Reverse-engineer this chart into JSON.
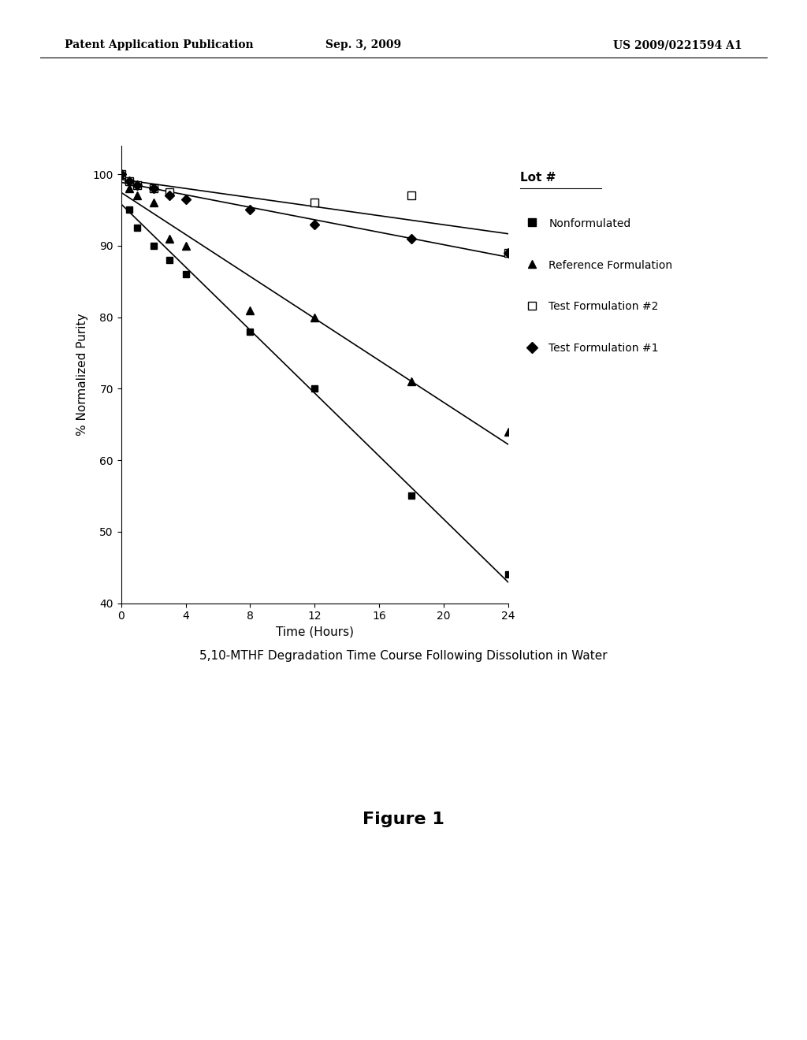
{
  "background_color": "#ffffff",
  "header_left": "Patent Application Publication",
  "header_center": "Sep. 3, 2009",
  "header_right": "US 2009/0221594 A1",
  "figure_label": "Figure 1",
  "chart_caption": "5,10-MTHF Degradation Time Course Following Dissolution in Water",
  "xlabel": "Time (Hours)",
  "ylabel": "% Normalized Purity",
  "xlim": [
    0,
    24
  ],
  "ylim": [
    40,
    104
  ],
  "xticks": [
    0,
    4,
    8,
    12,
    16,
    20,
    24
  ],
  "yticks": [
    40,
    50,
    60,
    70,
    80,
    90,
    100
  ],
  "legend_title": "Lot #",
  "series": [
    {
      "label": "Nonformulated",
      "marker": "s",
      "marker_fill": "black",
      "marker_size": 6,
      "color": "black",
      "x": [
        0,
        0.5,
        1,
        2,
        3,
        4,
        8,
        12,
        18,
        24
      ],
      "y": [
        100,
        95,
        92.5,
        90,
        88,
        86,
        78,
        70,
        55,
        44
      ]
    },
    {
      "label": "Reference Formulation",
      "marker": "^",
      "marker_fill": "black",
      "marker_size": 7,
      "color": "black",
      "x": [
        0,
        0.5,
        1,
        2,
        3,
        4,
        8,
        12,
        18,
        24
      ],
      "y": [
        100,
        98,
        97,
        96,
        91,
        90,
        81,
        80,
        71,
        64
      ]
    },
    {
      "label": "Test Formulation #2",
      "marker": "s",
      "marker_fill": "white",
      "marker_size": 7,
      "color": "black",
      "x": [
        0,
        0.5,
        1,
        2,
        3,
        12,
        18,
        24
      ],
      "y": [
        100,
        99,
        98.5,
        98,
        97.5,
        96,
        97,
        89
      ]
    },
    {
      "label": "Test Formulation #1",
      "marker": "D",
      "marker_fill": "black",
      "marker_size": 6,
      "color": "black",
      "x": [
        0,
        0.5,
        1,
        2,
        3,
        4,
        8,
        12,
        18,
        24
      ],
      "y": [
        100,
        99,
        98.5,
        98,
        97,
        96.5,
        95,
        93,
        91,
        89
      ]
    }
  ]
}
